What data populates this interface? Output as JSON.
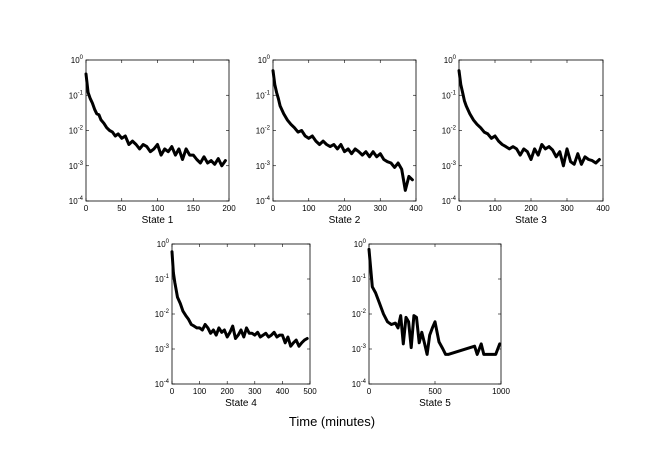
{
  "figure": {
    "common_xlabel": "Time (minutes)",
    "line_color": "#000000"
  },
  "chart_data": [
    {
      "type": "line",
      "xlabel": "State 1",
      "yscale": "log",
      "xlim": [
        0,
        200
      ],
      "ylim": [
        0.0001,
        1
      ],
      "xticks": [
        "0",
        "50",
        "100",
        "150",
        "200"
      ],
      "yticks": [
        "10^0",
        "10^-1",
        "10^-2",
        "10^-3",
        "10^-4"
      ],
      "series": [
        {
          "x": [
            0,
            3,
            6,
            9,
            12,
            15,
            18,
            21,
            25,
            29,
            33,
            37,
            41,
            45,
            50,
            55,
            60,
            65,
            70,
            75,
            80,
            85,
            90,
            95,
            100,
            105,
            110,
            115,
            120,
            125,
            130,
            135,
            140,
            145,
            150,
            155,
            160,
            165,
            170,
            175,
            180,
            185,
            190,
            195
          ],
          "y": [
            0.4,
            0.12,
            0.08,
            0.06,
            0.04,
            0.03,
            0.028,
            0.02,
            0.016,
            0.012,
            0.01,
            0.009,
            0.007,
            0.008,
            0.006,
            0.007,
            0.004,
            0.005,
            0.004,
            0.003,
            0.004,
            0.0035,
            0.0025,
            0.003,
            0.004,
            0.002,
            0.003,
            0.0025,
            0.0035,
            0.002,
            0.003,
            0.0015,
            0.003,
            0.002,
            0.002,
            0.0015,
            0.0012,
            0.0018,
            0.0012,
            0.0014,
            0.0011,
            0.0016,
            0.001,
            0.0014
          ]
        }
      ]
    },
    {
      "type": "line",
      "xlabel": "State 2",
      "yscale": "log",
      "xlim": [
        0,
        400
      ],
      "ylim": [
        0.0001,
        1
      ],
      "xticks": [
        "0",
        "100",
        "200",
        "300",
        "400"
      ],
      "yticks": [
        "10^0",
        "10^-1",
        "10^-2",
        "10^-3",
        "10^-4"
      ],
      "series": [
        {
          "x": [
            0,
            5,
            10,
            15,
            20,
            30,
            40,
            50,
            60,
            70,
            80,
            90,
            100,
            110,
            120,
            130,
            140,
            150,
            160,
            170,
            180,
            190,
            200,
            210,
            220,
            230,
            240,
            250,
            260,
            270,
            280,
            290,
            300,
            310,
            320,
            330,
            340,
            350,
            360,
            370,
            380,
            390
          ],
          "y": [
            0.5,
            0.2,
            0.12,
            0.08,
            0.05,
            0.03,
            0.02,
            0.015,
            0.012,
            0.009,
            0.01,
            0.007,
            0.006,
            0.007,
            0.005,
            0.004,
            0.005,
            0.004,
            0.0035,
            0.004,
            0.003,
            0.004,
            0.0025,
            0.003,
            0.0022,
            0.003,
            0.0025,
            0.002,
            0.0025,
            0.0018,
            0.0025,
            0.0018,
            0.0022,
            0.0015,
            0.0013,
            0.0012,
            0.0009,
            0.0012,
            0.0008,
            0.0002,
            0.0005,
            0.0004
          ]
        }
      ]
    },
    {
      "type": "line",
      "xlabel": "State 3",
      "yscale": "log",
      "xlim": [
        0,
        400
      ],
      "ylim": [
        0.0001,
        1
      ],
      "xticks": [
        "0",
        "100",
        "200",
        "300",
        "400"
      ],
      "yticks": [
        "10^0",
        "10^-1",
        "10^-2",
        "10^-3",
        "10^-4"
      ],
      "series": [
        {
          "x": [
            0,
            5,
            10,
            15,
            20,
            30,
            40,
            50,
            60,
            70,
            80,
            90,
            100,
            110,
            120,
            130,
            140,
            150,
            160,
            170,
            180,
            190,
            200,
            210,
            220,
            230,
            240,
            250,
            260,
            270,
            280,
            290,
            300,
            310,
            320,
            330,
            340,
            350,
            360,
            370,
            380,
            390
          ],
          "y": [
            0.5,
            0.2,
            0.12,
            0.07,
            0.05,
            0.03,
            0.02,
            0.015,
            0.012,
            0.009,
            0.008,
            0.006,
            0.007,
            0.005,
            0.004,
            0.0035,
            0.003,
            0.0035,
            0.003,
            0.002,
            0.003,
            0.0025,
            0.0015,
            0.003,
            0.002,
            0.004,
            0.003,
            0.0035,
            0.0028,
            0.0018,
            0.0025,
            0.001,
            0.003,
            0.0013,
            0.0011,
            0.0022,
            0.0011,
            0.0018,
            0.0015,
            0.0014,
            0.0012,
            0.0015
          ]
        }
      ]
    },
    {
      "type": "line",
      "xlabel": "State 4",
      "yscale": "log",
      "xlim": [
        0,
        500
      ],
      "ylim": [
        0.0001,
        1
      ],
      "xticks": [
        "0",
        "100",
        "200",
        "300",
        "400",
        "500"
      ],
      "yticks": [
        "10^0",
        "10^-1",
        "10^-2",
        "10^-3",
        "10^-4"
      ],
      "series": [
        {
          "x": [
            0,
            5,
            10,
            15,
            20,
            30,
            40,
            50,
            60,
            70,
            80,
            90,
            100,
            110,
            120,
            130,
            140,
            150,
            160,
            170,
            180,
            190,
            200,
            210,
            220,
            230,
            240,
            250,
            260,
            270,
            280,
            290,
            300,
            310,
            320,
            330,
            340,
            350,
            360,
            370,
            380,
            390,
            400,
            410,
            420,
            430,
            440,
            450,
            460,
            470,
            480,
            490
          ],
          "y": [
            0.6,
            0.15,
            0.08,
            0.05,
            0.03,
            0.02,
            0.012,
            0.009,
            0.007,
            0.005,
            0.0045,
            0.004,
            0.004,
            0.0035,
            0.005,
            0.004,
            0.0028,
            0.0035,
            0.0025,
            0.004,
            0.003,
            0.0035,
            0.0022,
            0.003,
            0.0045,
            0.002,
            0.0025,
            0.0035,
            0.0022,
            0.004,
            0.0028,
            0.0028,
            0.0025,
            0.003,
            0.0022,
            0.0025,
            0.0028,
            0.0022,
            0.0025,
            0.003,
            0.0022,
            0.0025,
            0.0025,
            0.0015,
            0.0022,
            0.0012,
            0.0015,
            0.0018,
            0.0012,
            0.0015,
            0.0018,
            0.002
          ]
        }
      ]
    },
    {
      "type": "line",
      "xlabel": "State 5",
      "yscale": "log",
      "xlim": [
        0,
        1000
      ],
      "ylim": [
        0.0001,
        1
      ],
      "xticks": [
        "0",
        "500",
        "1000"
      ],
      "yticks": [
        "10^0",
        "10^-1",
        "10^-2",
        "10^-3",
        "10^-4"
      ],
      "series": [
        {
          "x": [
            0,
            25,
            50,
            80,
            110,
            140,
            170,
            200,
            220,
            240,
            260,
            280,
            300,
            320,
            340,
            360,
            380,
            400,
            420,
            440,
            460,
            480,
            500,
            530,
            560,
            580,
            600,
            800,
            820,
            850,
            870,
            900,
            930,
            960,
            990
          ],
          "y": [
            0.7,
            0.06,
            0.04,
            0.02,
            0.01,
            0.006,
            0.005,
            0.0055,
            0.004,
            0.009,
            0.0014,
            0.008,
            0.006,
            0.0011,
            0.009,
            0.008,
            0.0015,
            0.003,
            0.0015,
            0.0007,
            0.0025,
            0.004,
            0.006,
            0.0016,
            0.001,
            0.0007,
            0.0007,
            0.0012,
            0.0007,
            0.0014,
            0.0007,
            0.0007,
            0.0007,
            0.0007,
            0.0014
          ]
        }
      ]
    }
  ]
}
